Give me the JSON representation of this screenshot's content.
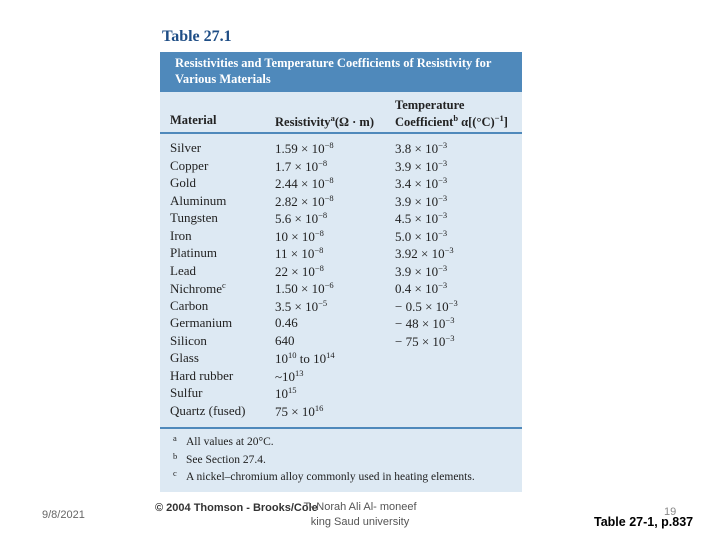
{
  "table": {
    "label": "Table 27.1",
    "title": "Resistivities and Temperature Coefficients of Resistivity for Various Materials",
    "headers": [
      [
        [
          "Material"
        ]
      ],
      [
        [
          "Resistivity",
          "a",
          "(Ω · m)"
        ]
      ],
      [
        [
          "Temperature"
        ],
        [
          "Coefficient",
          "b",
          " α[(°C)",
          "−1",
          "]"
        ]
      ]
    ],
    "rows": [
      [
        [
          "Silver"
        ],
        [
          "1.59 × 10",
          "−8"
        ],
        [
          "3.8 × 10",
          "−3"
        ]
      ],
      [
        [
          "Copper"
        ],
        [
          "1.7 × 10",
          "−8"
        ],
        [
          "3.9 × 10",
          "−3"
        ]
      ],
      [
        [
          "Gold"
        ],
        [
          "2.44 × 10",
          "−8"
        ],
        [
          "3.4 × 10",
          "−3"
        ]
      ],
      [
        [
          "Aluminum"
        ],
        [
          "2.82 × 10",
          "−8"
        ],
        [
          "3.9 × 10",
          "−3"
        ]
      ],
      [
        [
          "Tungsten"
        ],
        [
          "5.6 × 10",
          "−8"
        ],
        [
          "4.5 × 10",
          "−3"
        ]
      ],
      [
        [
          "Iron"
        ],
        [
          "10 × 10",
          "−8"
        ],
        [
          "5.0 × 10",
          "−3"
        ]
      ],
      [
        [
          "Platinum"
        ],
        [
          "11 × 10",
          "−8"
        ],
        [
          "3.92 × 10",
          "−3"
        ]
      ],
      [
        [
          "Lead"
        ],
        [
          "22 × 10",
          "−8"
        ],
        [
          "3.9 × 10",
          "−3"
        ]
      ],
      [
        [
          "Nichrome",
          "c"
        ],
        [
          "1.50 × 10",
          "−6"
        ],
        [
          "0.4 × 10",
          "−3"
        ]
      ],
      [
        [
          "Carbon"
        ],
        [
          "3.5 × 10",
          "−5"
        ],
        [
          "− 0.5 × 10",
          "−3"
        ]
      ],
      [
        [
          "Germanium"
        ],
        [
          "0.46"
        ],
        [
          "− 48 × 10",
          "−3"
        ]
      ],
      [
        [
          "Silicon"
        ],
        [
          "640"
        ],
        [
          "− 75 × 10",
          "−3"
        ]
      ],
      [
        [
          "Glass"
        ],
        [
          "10",
          "10",
          " to 10",
          "14"
        ],
        []
      ],
      [
        [
          "Hard rubber"
        ],
        [
          "~10",
          "13"
        ],
        []
      ],
      [
        [
          "Sulfur"
        ],
        [
          "10",
          "15"
        ],
        []
      ],
      [
        [
          "Quartz (fused)"
        ],
        [
          "75 × 10",
          "16"
        ],
        []
      ]
    ],
    "footnotes": [
      {
        "mark": "a",
        "text": "All values at 20°C."
      },
      {
        "mark": "b",
        "text": "See Section 27.4."
      },
      {
        "mark": "c",
        "text": "A nickel–chromium alloy commonly used in heating elements."
      }
    ]
  },
  "copyright": "© 2004 Thomson - Brooks/Cole",
  "footer": {
    "date": "9/8/2021",
    "author": "T- Norah Ali Al- moneef",
    "institution": "king Saud university",
    "page": "19",
    "reference": "Table 27-1, p.837"
  }
}
